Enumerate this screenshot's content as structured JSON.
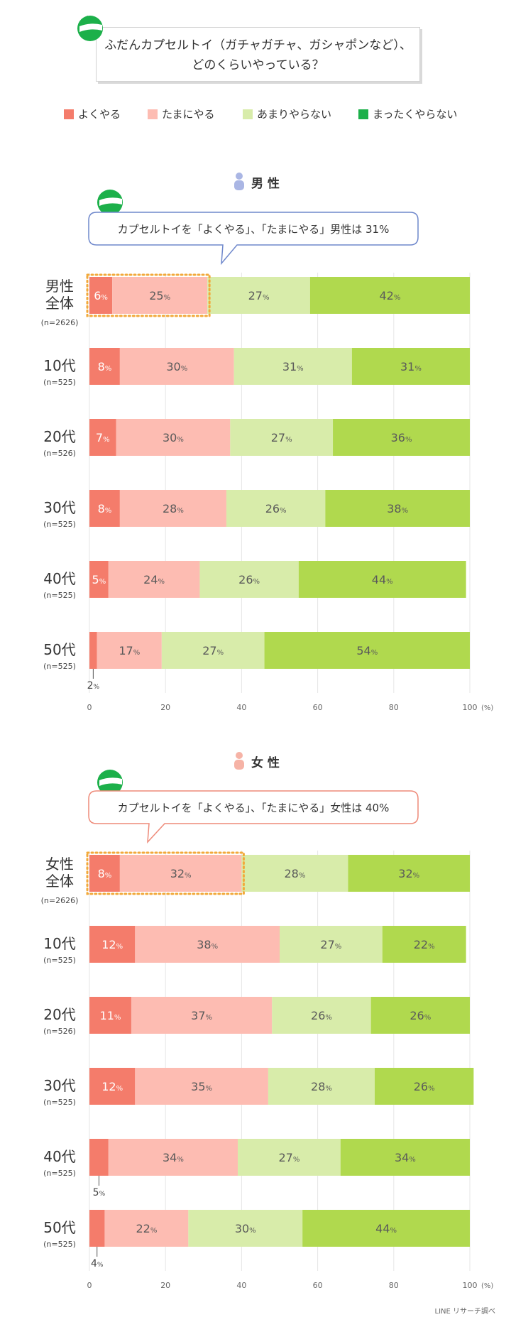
{
  "title": {
    "line1": "ふだんカプセルトイ（ガチャガチャ、ガシャポンなど）、",
    "line2": "どのくらいやっている？"
  },
  "legend": [
    {
      "label": "よくやる",
      "color": "#f47c6b"
    },
    {
      "label": "たまにやる",
      "color": "#fdbcb2"
    },
    {
      "label": "あまりやらない",
      "color": "#d8ecaa"
    },
    {
      "label": "まったくやらない",
      "color": "#b0d94e"
    }
  ],
  "colors": {
    "accent_green": "#1cb04a",
    "male_icon": "#aab6e4",
    "female_icon": "#f6b3a6",
    "male_callout_border": "#6f88cc",
    "female_callout_border": "#ee8a79",
    "highlight_dots": "#f2a93b"
  },
  "sections": {
    "male": {
      "heading": "男 性",
      "callout": "カプセルトイを「よくやる」、「たまにやる」男性は 31%"
    },
    "female": {
      "heading": "女 性",
      "callout": "カプセルトイを「よくやる」、「たまにやる」女性は 40%"
    }
  },
  "chart_data": [
    {
      "type": "bar",
      "orientation": "horizontal-stacked-100",
      "title": "男 性",
      "series": [
        {
          "name": "よくやる",
          "values": [
            6,
            8,
            7,
            8,
            5,
            2
          ]
        },
        {
          "name": "たまにやる",
          "values": [
            25,
            30,
            30,
            28,
            24,
            17
          ]
        },
        {
          "name": "あまりやらない",
          "values": [
            27,
            31,
            27,
            26,
            26,
            27
          ]
        },
        {
          "name": "まったくやらない",
          "values": [
            42,
            31,
            36,
            38,
            44,
            54
          ]
        }
      ],
      "categories": [
        {
          "label_lines": [
            "男性",
            "全体"
          ],
          "n": "(n=2626)"
        },
        {
          "label_lines": [
            "10代"
          ],
          "n": "(n=525)"
        },
        {
          "label_lines": [
            "20代"
          ],
          "n": "(n=526)"
        },
        {
          "label_lines": [
            "30代"
          ],
          "n": "(n=525)"
        },
        {
          "label_lines": [
            "40代"
          ],
          "n": "(n=525)"
        },
        {
          "label_lines": [
            "50代"
          ],
          "n": "(n=525)"
        }
      ],
      "external_labels": [
        {
          "row": 5,
          "series": 0,
          "text": "2"
        }
      ],
      "highlight_row": 0,
      "highlight_series": [
        0,
        1
      ],
      "xlim": [
        0,
        100
      ],
      "xticks": [
        0,
        20,
        40,
        60,
        80,
        100
      ],
      "xunit": "(%)",
      "value_suffix": "%"
    },
    {
      "type": "bar",
      "orientation": "horizontal-stacked-100",
      "title": "女 性",
      "series": [
        {
          "name": "よくやる",
          "values": [
            8,
            12,
            11,
            12,
            5,
            4
          ]
        },
        {
          "name": "たまにやる",
          "values": [
            32,
            38,
            37,
            35,
            34,
            22
          ]
        },
        {
          "name": "あまりやらない",
          "values": [
            28,
            27,
            26,
            28,
            27,
            30
          ]
        },
        {
          "name": "まったくやらない",
          "values": [
            32,
            22,
            26,
            26,
            34,
            44
          ]
        }
      ],
      "categories": [
        {
          "label_lines": [
            "女性",
            "全体"
          ],
          "n": "(n=2626)"
        },
        {
          "label_lines": [
            "10代"
          ],
          "n": "(n=525)"
        },
        {
          "label_lines": [
            "20代"
          ],
          "n": "(n=526)"
        },
        {
          "label_lines": [
            "30代"
          ],
          "n": "(n=525)"
        },
        {
          "label_lines": [
            "40代"
          ],
          "n": "(n=525)"
        },
        {
          "label_lines": [
            "50代"
          ],
          "n": "(n=525)"
        }
      ],
      "external_labels": [
        {
          "row": 4,
          "series": 0,
          "text": "5"
        },
        {
          "row": 5,
          "series": 0,
          "text": "4"
        }
      ],
      "highlight_row": 0,
      "highlight_series": [
        0,
        1
      ],
      "xlim": [
        0,
        100
      ],
      "xticks": [
        0,
        20,
        40,
        60,
        80,
        100
      ],
      "xunit": "(%)",
      "value_suffix": "%"
    }
  ],
  "footer": {
    "credit": "LINE リサーチ調べ"
  }
}
